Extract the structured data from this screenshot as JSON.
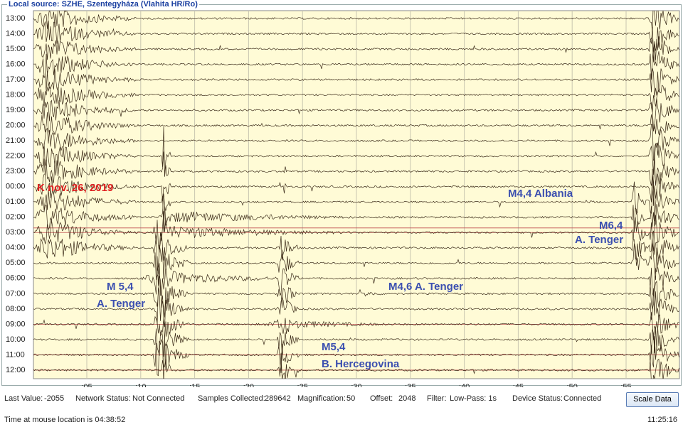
{
  "window_title": "Local source: SZHE, Szentegyháza (Vlahita HR/Ro)",
  "plot": {
    "row_labels": [
      "13:00",
      "14:00",
      "15:00",
      "16:00",
      "17:00",
      "18:00",
      "19:00",
      "20:00",
      "21:00",
      "22:00",
      "23:00",
      "00:00",
      "01:00",
      "02:00",
      "03:00",
      "04:00",
      "05:00",
      "06:00",
      "07:00",
      "08:00",
      "09:00",
      "10:00",
      "11:00",
      "12:00"
    ],
    "minute_labels": [
      ":05",
      ":10",
      ":15",
      ":20",
      ":25",
      ":30",
      ":35",
      ":40",
      ":45",
      ":50",
      ":55"
    ],
    "annotations": [
      {
        "text": "K nov. 26, 2019"
      },
      {
        "text": "M4,4 Albania"
      },
      {
        "text": "M6,4"
      },
      {
        "text": "A. Tenger"
      },
      {
        "text": "M 5,4"
      },
      {
        "text": "A. Tenger"
      },
      {
        "text": "M4,6 A. Tenger"
      },
      {
        "text": "M5,4"
      },
      {
        "text": "B. Hercegovina"
      }
    ]
  },
  "status_bar": {
    "fields": [
      {
        "label": "Last Value:",
        "value": "-2055"
      },
      {
        "label": "Network Status:",
        "value": "Not Connected"
      },
      {
        "label": "Samples Collected:",
        "value": "289642"
      },
      {
        "label": "Magnification:",
        "value": "50"
      },
      {
        "label": "Offset:",
        "value": "2048"
      },
      {
        "label": "Filter:",
        "value": "Low-Pass: 1s"
      },
      {
        "label": "Device Status:",
        "value": "Connected"
      }
    ],
    "button": "Scale Data"
  },
  "footer": {
    "mouse_time": "Time at mouse location is 04:38:52",
    "clock": "11:25:16"
  }
}
